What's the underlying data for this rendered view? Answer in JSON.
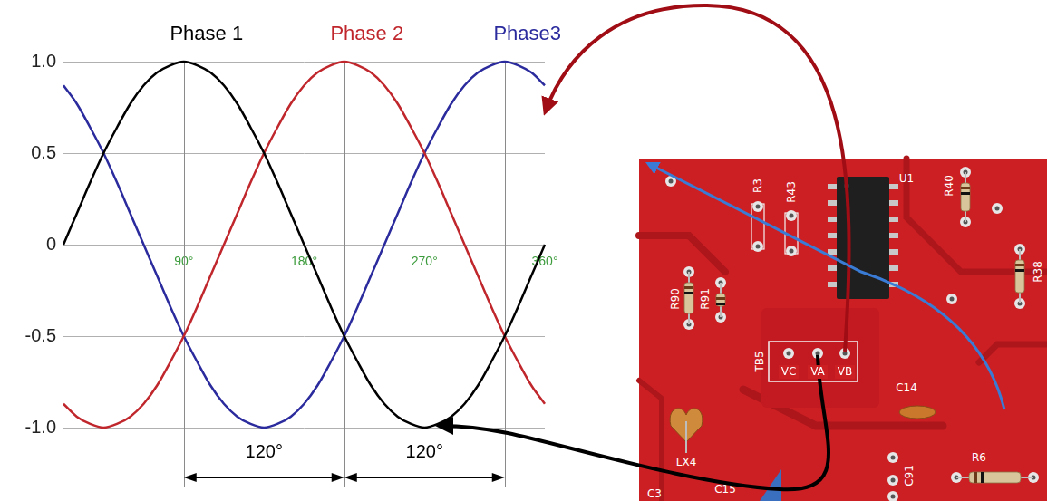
{
  "chart_data": {
    "type": "line",
    "x": [
      0,
      10,
      20,
      30,
      40,
      50,
      60,
      70,
      80,
      90,
      100,
      110,
      120,
      130,
      140,
      150,
      160,
      170,
      180,
      190,
      200,
      210,
      220,
      230,
      240,
      250,
      260,
      270,
      280,
      290,
      300,
      310,
      320,
      330,
      340,
      350,
      360
    ],
    "series": [
      {
        "name": "Phase 1",
        "color": "#000000",
        "values": [
          0,
          0.17,
          0.34,
          0.5,
          0.64,
          0.77,
          0.87,
          0.94,
          0.98,
          1,
          0.98,
          0.94,
          0.87,
          0.77,
          0.64,
          0.5,
          0.34,
          0.17,
          0,
          -0.17,
          -0.34,
          -0.5,
          -0.64,
          -0.77,
          -0.87,
          -0.94,
          -0.98,
          -1,
          -0.98,
          -0.94,
          -0.87,
          -0.77,
          -0.64,
          -0.5,
          -0.34,
          -0.17,
          0
        ]
      },
      {
        "name": "Phase 2",
        "color": "#c0272d",
        "values": [
          -0.87,
          -0.94,
          -0.98,
          -1,
          -0.98,
          -0.94,
          -0.87,
          -0.77,
          -0.64,
          -0.5,
          -0.34,
          -0.17,
          0,
          0.17,
          0.34,
          0.5,
          0.64,
          0.77,
          0.87,
          0.94,
          0.98,
          1,
          0.98,
          0.94,
          0.87,
          0.77,
          0.64,
          0.5,
          0.34,
          0.17,
          0,
          -0.17,
          -0.34,
          -0.5,
          -0.64,
          -0.77,
          -0.87
        ]
      },
      {
        "name": "Phase3",
        "color": "#2b2b9e",
        "values": [
          0.87,
          0.77,
          0.64,
          0.5,
          0.34,
          0.17,
          0,
          -0.17,
          -0.34,
          -0.5,
          -0.64,
          -0.77,
          -0.87,
          -0.94,
          -0.98,
          -1,
          -0.98,
          -0.94,
          -0.87,
          -0.77,
          -0.64,
          -0.5,
          -0.34,
          -0.17,
          0,
          0.17,
          0.34,
          0.5,
          0.64,
          0.77,
          0.87,
          0.94,
          0.98,
          1,
          0.98,
          0.94,
          0.87
        ]
      }
    ],
    "xlim": [
      0,
      360
    ],
    "xticks": [
      {
        "value": 90,
        "label": "90°"
      },
      {
        "value": 180,
        "label": "180°"
      },
      {
        "value": 270,
        "label": "270°"
      },
      {
        "value": 360,
        "label": "360°"
      }
    ],
    "ylim": [
      -1,
      1
    ],
    "yticks": [
      {
        "value": -1,
        "label": "-1.0"
      },
      -0.5,
      0,
      0.5,
      {
        "value": 1,
        "label": "1.0"
      }
    ],
    "grid": true,
    "legend": "top",
    "reference_lines": [
      90,
      210,
      330
    ],
    "dimensions": [
      {
        "from": 90,
        "to": 210,
        "label": "120°"
      },
      {
        "from": 210,
        "to": 330,
        "label": "120°"
      }
    ]
  },
  "photo": {
    "components": [
      "U1",
      "R3",
      "R43",
      "R90",
      "R91",
      "R40",
      "R38",
      "C14",
      "LX4",
      "R6",
      "C91",
      "C15",
      "C3"
    ],
    "terminal_block": {
      "label": "TB5",
      "terminals": [
        "VC",
        "VA",
        "VB"
      ]
    }
  }
}
